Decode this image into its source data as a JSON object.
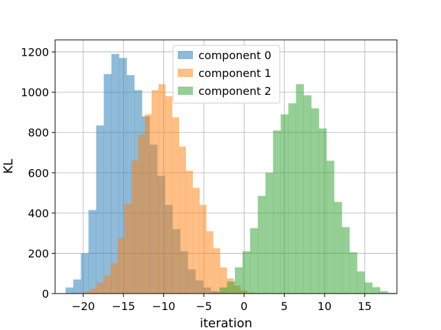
{
  "chart_data": {
    "type": "bar",
    "title": "",
    "xlabel": "iteration",
    "ylabel": "KL",
    "xlim": [
      -23.5,
      19
    ],
    "ylim": [
      0,
      1260
    ],
    "grid": true,
    "legend_position": "top-center",
    "xticks": [
      -20,
      -15,
      -10,
      -5,
      0,
      5,
      10,
      15
    ],
    "yticks": [
      0,
      200,
      400,
      600,
      800,
      1000,
      1200
    ],
    "series": [
      {
        "name": "component 0",
        "color": "#1f77b4",
        "bin_start": -22.2,
        "bin_width": 0.95,
        "values": [
          30,
          70,
          200,
          415,
          835,
          1090,
          1190,
          1170,
          1085,
          1010,
          880,
          740,
          585,
          440,
          320,
          210,
          120,
          65,
          30,
          12,
          5
        ]
      },
      {
        "name": "component 1",
        "color": "#ff7f0e",
        "bin_start": -20.0,
        "bin_width": 0.85,
        "values": [
          10,
          25,
          55,
          90,
          150,
          275,
          445,
          660,
          790,
          890,
          1010,
          1040,
          980,
          875,
          730,
          610,
          525,
          440,
          310,
          225,
          130,
          75,
          40,
          15,
          5
        ]
      },
      {
        "name": "component 2",
        "color": "#2ca02c",
        "bin_start": -4.0,
        "bin_width": 0.95,
        "values": [
          5,
          30,
          60,
          130,
          210,
          325,
          485,
          600,
          810,
          890,
          945,
          1040,
          985,
          920,
          820,
          660,
          455,
          330,
          205,
          110,
          55,
          32,
          12,
          4
        ]
      }
    ]
  }
}
